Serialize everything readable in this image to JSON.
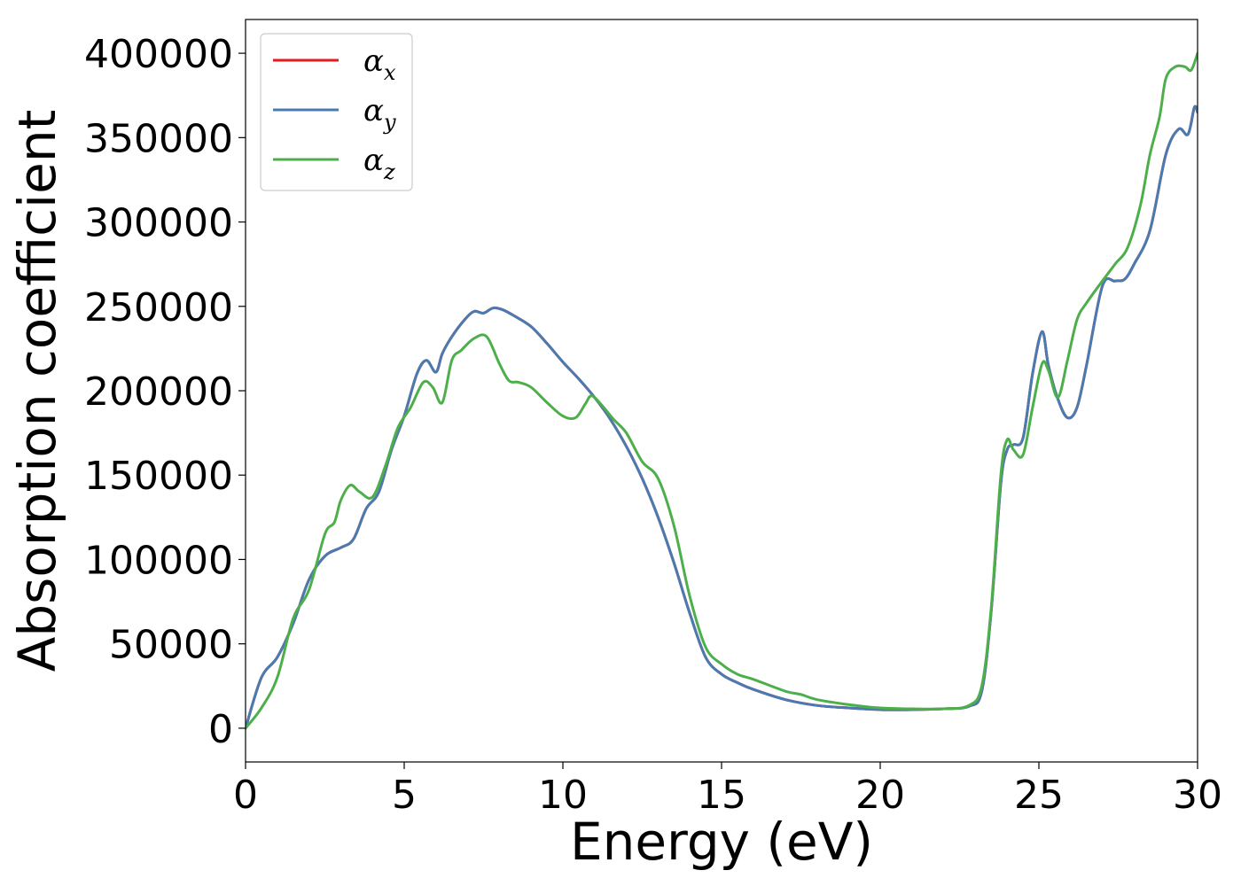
{
  "chart_data": {
    "type": "line",
    "title": "",
    "xlabel": "Energy (eV)",
    "ylabel": "Absorption coefficient",
    "xlim": [
      0,
      30
    ],
    "ylim": [
      -20000,
      420000
    ],
    "xticks": [
      0,
      5,
      10,
      15,
      20,
      25,
      30
    ],
    "xtick_labels": [
      "0",
      "5",
      "10",
      "15",
      "20",
      "25",
      "30"
    ],
    "yticks": [
      0,
      50000,
      100000,
      150000,
      200000,
      250000,
      300000,
      350000,
      400000
    ],
    "ytick_labels": [
      "0",
      "50000",
      "100000",
      "150000",
      "200000",
      "250000",
      "300000",
      "350000",
      "400000"
    ],
    "grid": false,
    "legend_position": "top-left",
    "series": [
      {
        "name": "αx",
        "label_main": "α",
        "label_sub": "x",
        "color": "#e41a1c",
        "x": [
          0,
          0.5,
          1.0,
          1.5,
          2.0,
          2.5,
          3.0,
          3.4,
          3.8,
          4.2,
          4.6,
          5.0,
          5.4,
          5.7,
          6.0,
          6.2,
          6.5,
          6.9,
          7.2,
          7.5,
          7.8,
          8.1,
          8.5,
          9.0,
          9.5,
          10.0,
          10.5,
          11.0,
          11.5,
          12.0,
          12.5,
          13.0,
          13.5,
          14.0,
          14.5,
          15.0,
          15.5,
          16.0,
          17.0,
          18.0,
          19.0,
          20.0,
          21.0,
          22.0,
          22.8,
          23.2,
          23.5,
          23.8,
          24.0,
          24.2,
          24.5,
          24.8,
          25.1,
          25.3,
          25.6,
          25.9,
          26.2,
          26.5,
          27.0,
          27.4,
          27.7,
          28.0,
          28.5,
          29.0,
          29.4,
          29.7,
          29.9,
          30.0
        ],
        "values": [
          0,
          30000,
          42000,
          62000,
          88000,
          102000,
          107000,
          112000,
          130000,
          140000,
          165000,
          185000,
          210000,
          218000,
          211000,
          222000,
          232000,
          242000,
          247000,
          246000,
          249000,
          248000,
          244000,
          238000,
          228000,
          217000,
          207000,
          196000,
          183000,
          167000,
          148000,
          125000,
          98000,
          68000,
          42000,
          32000,
          27000,
          23000,
          17000,
          13500,
          12000,
          11000,
          11000,
          11500,
          13000,
          22000,
          70000,
          145000,
          165000,
          168000,
          172000,
          210000,
          235000,
          215000,
          195000,
          184000,
          190000,
          215000,
          262000,
          265000,
          266000,
          275000,
          295000,
          340000,
          355000,
          352000,
          368000,
          365000
        ]
      },
      {
        "name": "αy",
        "label_main": "α",
        "label_sub": "y",
        "color": "#4a7bb0",
        "x": [
          0,
          0.5,
          1.0,
          1.5,
          2.0,
          2.5,
          3.0,
          3.4,
          3.8,
          4.2,
          4.6,
          5.0,
          5.4,
          5.7,
          6.0,
          6.2,
          6.5,
          6.9,
          7.2,
          7.5,
          7.8,
          8.1,
          8.5,
          9.0,
          9.5,
          10.0,
          10.5,
          11.0,
          11.5,
          12.0,
          12.5,
          13.0,
          13.5,
          14.0,
          14.5,
          15.0,
          15.5,
          16.0,
          17.0,
          18.0,
          19.0,
          20.0,
          21.0,
          22.0,
          22.8,
          23.2,
          23.5,
          23.8,
          24.0,
          24.2,
          24.5,
          24.8,
          25.1,
          25.3,
          25.6,
          25.9,
          26.2,
          26.5,
          27.0,
          27.4,
          27.7,
          28.0,
          28.5,
          29.0,
          29.4,
          29.7,
          29.9,
          30.0
        ],
        "values": [
          0,
          30000,
          42000,
          62000,
          88000,
          102000,
          107000,
          112000,
          130000,
          140000,
          165000,
          185000,
          210000,
          218000,
          211000,
          222000,
          232000,
          242000,
          247000,
          246000,
          249000,
          248000,
          244000,
          238000,
          228000,
          217000,
          207000,
          196000,
          183000,
          167000,
          148000,
          125000,
          98000,
          68000,
          42000,
          32000,
          27000,
          23000,
          17000,
          13500,
          12000,
          11000,
          11000,
          11500,
          13000,
          22000,
          70000,
          145000,
          165000,
          168000,
          172000,
          210000,
          235000,
          215000,
          195000,
          184000,
          190000,
          215000,
          262000,
          265000,
          266000,
          275000,
          295000,
          340000,
          355000,
          352000,
          368000,
          365000
        ]
      },
      {
        "name": "αz",
        "label_main": "α",
        "label_sub": "z",
        "color": "#4daf4a",
        "x": [
          0,
          0.5,
          1.0,
          1.5,
          2.0,
          2.5,
          2.8,
          3.0,
          3.3,
          3.6,
          4.0,
          4.4,
          4.8,
          5.2,
          5.6,
          5.9,
          6.2,
          6.5,
          6.8,
          7.2,
          7.6,
          8.0,
          8.3,
          8.6,
          9.0,
          9.5,
          10.0,
          10.4,
          10.7,
          10.9,
          11.2,
          11.6,
          12.0,
          12.5,
          13.0,
          13.5,
          14.0,
          14.5,
          15.0,
          15.5,
          16.0,
          17.0,
          17.5,
          18.0,
          19.0,
          20.0,
          21.0,
          22.0,
          22.8,
          23.2,
          23.5,
          23.8,
          24.0,
          24.2,
          24.5,
          24.8,
          25.1,
          25.3,
          25.6,
          25.9,
          26.2,
          26.5,
          27.0,
          27.4,
          27.8,
          28.2,
          28.5,
          28.8,
          29.0,
          29.3,
          29.6,
          29.8,
          30.0
        ],
        "values": [
          0,
          12000,
          30000,
          65000,
          82000,
          115000,
          122000,
          135000,
          144000,
          140000,
          137000,
          155000,
          178000,
          190000,
          205000,
          202000,
          193000,
          218000,
          224000,
          231000,
          232000,
          216000,
          206000,
          205000,
          202000,
          193000,
          185000,
          184000,
          192000,
          197000,
          192000,
          183000,
          175000,
          158000,
          148000,
          120000,
          78000,
          48000,
          38000,
          32000,
          29000,
          22000,
          20000,
          17000,
          14000,
          12000,
          11500,
          11500,
          13500,
          25000,
          72000,
          150000,
          171000,
          165000,
          162000,
          190000,
          216000,
          212000,
          196000,
          218000,
          242000,
          252000,
          265000,
          275000,
          285000,
          310000,
          340000,
          362000,
          385000,
          392000,
          392000,
          390000,
          400000
        ]
      }
    ]
  }
}
